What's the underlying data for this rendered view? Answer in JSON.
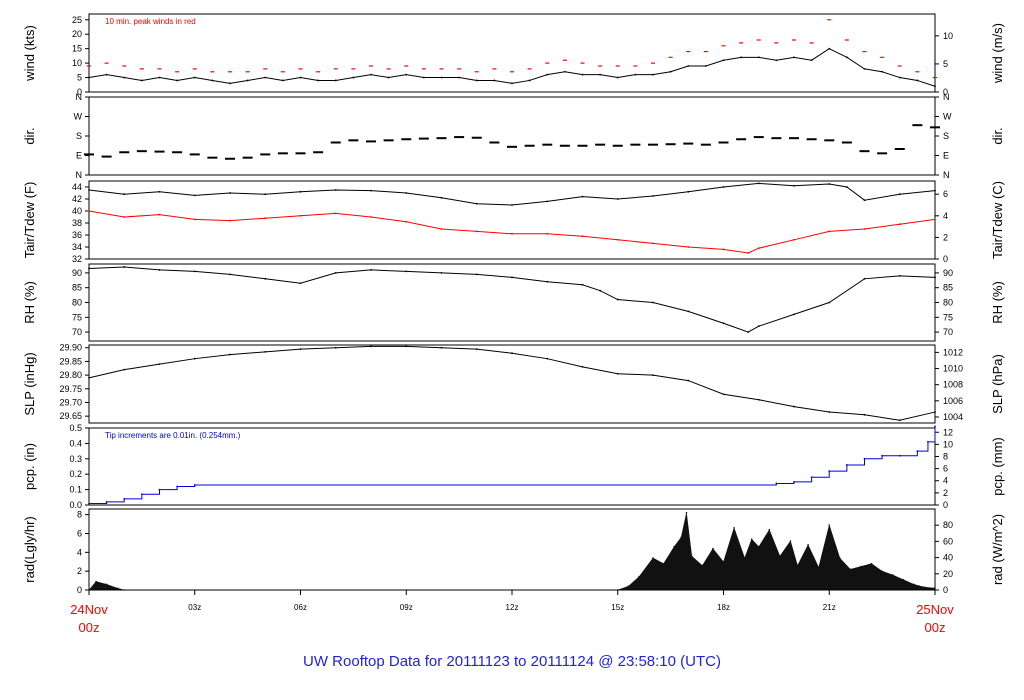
{
  "title": "UW Rooftop Data for 20111123  to  20111124 @ 23:58:10  (UTC)",
  "colors": {
    "black": "#000000",
    "red": "#ff0000",
    "blue": "#0000dd",
    "title": "#2222dd",
    "rad_fill": "#111111"
  },
  "x_axis": {
    "range_hours": [
      0,
      24
    ],
    "ticks": [
      {
        "hour": 0,
        "label": "24Nov",
        "sublabel": "00z",
        "highlight": true
      },
      {
        "hour": 3,
        "label": "03z"
      },
      {
        "hour": 6,
        "label": "06z"
      },
      {
        "hour": 9,
        "label": "09z"
      },
      {
        "hour": 12,
        "label": "12z"
      },
      {
        "hour": 15,
        "label": "15z"
      },
      {
        "hour": 18,
        "label": "18z"
      },
      {
        "hour": 21,
        "label": "21z"
      },
      {
        "hour": 24,
        "label": "25Nov",
        "sublabel": "00z",
        "highlight": true
      }
    ]
  },
  "chart_data": [
    {
      "id": "wind",
      "type": "line",
      "ylabel": "wind (kts)",
      "ylabel_right": "wind (m/s)",
      "ylim": [
        0,
        27
      ],
      "yticks": [
        0,
        5,
        10,
        15,
        20,
        25
      ],
      "yticks_right": [
        {
          "label": "0",
          "value": 0
        },
        {
          "label": "5",
          "value": 9.72
        },
        {
          "label": "10",
          "value": 19.44
        }
      ],
      "annotation": {
        "text": "10 min. peak winds in red",
        "color": "#ff0000"
      },
      "series": [
        {
          "color": "#000000",
          "x": [
            0,
            0.5,
            1,
            1.5,
            2,
            2.5,
            3,
            3.5,
            4,
            4.5,
            5,
            5.5,
            6,
            6.5,
            7,
            7.5,
            8,
            8.5,
            9,
            9.5,
            10,
            10.5,
            11,
            11.5,
            12,
            12.5,
            13,
            13.5,
            14,
            14.5,
            15,
            15.5,
            16,
            16.5,
            17,
            17.5,
            18,
            18.5,
            19,
            19.5,
            20,
            20.5,
            21,
            21.5,
            22,
            22.5,
            23,
            23.5,
            24
          ],
          "values": [
            5,
            6,
            5,
            4,
            5,
            4,
            5,
            4,
            3,
            4,
            5,
            4,
            5,
            4,
            4,
            5,
            6,
            5,
            6,
            5,
            5,
            5,
            4,
            4,
            3,
            4,
            6,
            7,
            6,
            6,
            5,
            6,
            6,
            7,
            9,
            9,
            11,
            12,
            12,
            11,
            12,
            11,
            15,
            12,
            8,
            7,
            5,
            4,
            2
          ]
        },
        {
          "color": "#ff0000",
          "style": "dash-markers",
          "name": "10 min. peak winds in red",
          "x": [
            0,
            0.5,
            1,
            1.5,
            2,
            2.5,
            3,
            3.5,
            4,
            4.5,
            5,
            5.5,
            6,
            6.5,
            7,
            7.5,
            8,
            8.5,
            9,
            9.5,
            10,
            10.5,
            11,
            11.5,
            12,
            12.5,
            13,
            13.5,
            14,
            14.5,
            15,
            15.5,
            16,
            16.5,
            17,
            17.5,
            18,
            18.5,
            19,
            19.5,
            20,
            20.5,
            21,
            21.5,
            22,
            22.5,
            23,
            23.5,
            24
          ],
          "values": [
            9,
            10,
            9,
            8,
            8,
            7,
            8,
            7,
            7,
            7,
            8,
            7,
            8,
            7,
            8,
            8,
            9,
            8,
            9,
            8,
            8,
            8,
            7,
            8,
            7,
            8,
            10,
            11,
            10,
            9,
            9,
            9,
            10,
            12,
            14,
            14,
            16,
            17,
            18,
            17,
            18,
            17,
            25,
            18,
            14,
            12,
            9,
            7,
            5
          ]
        }
      ]
    },
    {
      "id": "dir",
      "type": "scatter",
      "ylabel": "dir.",
      "ylabel_right": "dir.",
      "ylim": [
        0,
        360
      ],
      "yticks": [
        {
          "label": "N",
          "value": 0
        },
        {
          "label": "E",
          "value": 90
        },
        {
          "label": "S",
          "value": 180
        },
        {
          "label": "W",
          "value": 270
        },
        {
          "label": "N",
          "value": 360
        }
      ],
      "series": [
        {
          "color": "#000000",
          "x": [
            0,
            0.5,
            1,
            1.5,
            2,
            2.5,
            3,
            3.5,
            4,
            4.5,
            5,
            5.5,
            6,
            6.5,
            7,
            7.5,
            8,
            8.5,
            9,
            9.5,
            10,
            10.5,
            11,
            11.5,
            12,
            12.5,
            13,
            13.5,
            14,
            14.5,
            15,
            15.5,
            16,
            16.5,
            17,
            17.5,
            18,
            18.5,
            19,
            19.5,
            20,
            20.5,
            21,
            21.5,
            22,
            22.5,
            23,
            23.5,
            24
          ],
          "values": [
            95,
            85,
            105,
            110,
            108,
            105,
            95,
            80,
            75,
            80,
            95,
            100,
            100,
            105,
            150,
            160,
            155,
            160,
            165,
            168,
            170,
            175,
            172,
            150,
            130,
            135,
            140,
            135,
            135,
            140,
            135,
            140,
            140,
            142,
            145,
            140,
            150,
            165,
            175,
            170,
            170,
            165,
            160,
            150,
            110,
            100,
            120,
            230,
            220
          ]
        }
      ]
    },
    {
      "id": "temp",
      "type": "line",
      "ylabel": "Tair/Tdew (F)",
      "ylabel_right": "Tair/Tdew (C)",
      "ylim": [
        32,
        45
      ],
      "yticks": [
        32,
        34,
        36,
        38,
        40,
        42,
        44
      ],
      "yticks_right": [
        {
          "label": "0",
          "value": 32
        },
        {
          "label": "2",
          "value": 35.6
        },
        {
          "label": "4",
          "value": 39.2
        },
        {
          "label": "6",
          "value": 42.8
        }
      ],
      "series": [
        {
          "color": "#000000",
          "x": [
            0,
            1,
            2,
            3,
            4,
            5,
            6,
            7,
            8,
            9,
            10,
            11,
            12,
            13,
            14,
            15,
            16,
            17,
            18,
            19,
            20,
            21,
            21.5,
            22,
            23,
            24
          ],
          "values": [
            43.5,
            42.8,
            43.2,
            42.6,
            43.0,
            42.8,
            43.2,
            43.5,
            43.4,
            43.0,
            42.2,
            41.2,
            41.0,
            41.6,
            42.4,
            42.0,
            42.5,
            43.2,
            44.0,
            44.6,
            44.2,
            44.5,
            44.0,
            41.8,
            42.8,
            43.4
          ]
        },
        {
          "color": "#ff0000",
          "x": [
            0,
            1,
            2,
            3,
            4,
            5,
            6,
            7,
            8,
            9,
            10,
            11,
            12,
            13,
            14,
            15,
            16,
            17,
            18,
            18.7,
            19,
            20,
            21,
            22,
            23,
            24
          ],
          "values": [
            40.0,
            39.0,
            39.4,
            38.6,
            38.4,
            38.8,
            39.2,
            39.6,
            39.0,
            38.2,
            37.0,
            36.6,
            36.2,
            36.2,
            35.8,
            35.2,
            34.6,
            34.0,
            33.6,
            33.0,
            33.8,
            35.2,
            36.6,
            37.0,
            37.8,
            38.6
          ]
        }
      ]
    },
    {
      "id": "rh",
      "type": "line",
      "ylabel": "RH (%)",
      "ylabel_right": "RH (%)",
      "ylim": [
        67,
        93
      ],
      "yticks": [
        70,
        75,
        80,
        85,
        90
      ],
      "series": [
        {
          "color": "#000000",
          "x": [
            0,
            1,
            2,
            3,
            4,
            5,
            6,
            7,
            8,
            9,
            10,
            11,
            12,
            13,
            14,
            14.5,
            15,
            16,
            17,
            18,
            18.7,
            19,
            20,
            21,
            22,
            23,
            24
          ],
          "values": [
            91.5,
            92.0,
            91.0,
            90.5,
            89.5,
            88.0,
            86.5,
            90.0,
            91.0,
            90.5,
            90.0,
            89.5,
            88.5,
            87.0,
            86.0,
            84.0,
            81.0,
            80.0,
            77.0,
            73.0,
            70.0,
            72.0,
            76.0,
            80.0,
            88.0,
            89.0,
            88.5
          ]
        }
      ]
    },
    {
      "id": "slp",
      "type": "line",
      "ylabel": "SLP (inHg)",
      "ylabel_right": "SLP (hPa)",
      "ylim": [
        29.625,
        29.91
      ],
      "yticks": [
        29.65,
        29.7,
        29.75,
        29.8,
        29.85,
        29.9
      ],
      "yticks_right": [
        {
          "label": "1004",
          "value": 29.647
        },
        {
          "label": "1006",
          "value": 29.706
        },
        {
          "label": "1008",
          "value": 29.765
        },
        {
          "label": "1010",
          "value": 29.824
        },
        {
          "label": "1012",
          "value": 29.883
        }
      ],
      "series": [
        {
          "color": "#000000",
          "x": [
            0,
            1,
            2,
            3,
            4,
            5,
            6,
            7,
            8,
            9,
            10,
            11,
            12,
            13,
            14,
            15,
            16,
            17,
            18,
            19,
            20,
            21,
            22,
            23,
            24
          ],
          "values": [
            29.79,
            29.82,
            29.84,
            29.86,
            29.875,
            29.885,
            29.895,
            29.9,
            29.905,
            29.905,
            29.9,
            29.895,
            29.88,
            29.86,
            29.83,
            29.805,
            29.8,
            29.78,
            29.73,
            29.71,
            29.685,
            29.665,
            29.655,
            29.635,
            29.665
          ]
        }
      ]
    },
    {
      "id": "pcp",
      "type": "line",
      "ylabel": "pcp. (in)",
      "ylabel_right": "pcp. (mm)",
      "ylim": [
        0,
        0.5
      ],
      "yticks": [
        0.0,
        0.1,
        0.2,
        0.3,
        0.4,
        0.5
      ],
      "yticks_right": [
        {
          "label": "0",
          "value": 0
        },
        {
          "label": "2",
          "value": 0.0787
        },
        {
          "label": "4",
          "value": 0.1575
        },
        {
          "label": "6",
          "value": 0.2362
        },
        {
          "label": "8",
          "value": 0.315
        },
        {
          "label": "10",
          "value": 0.3937
        },
        {
          "label": "12",
          "value": 0.4724
        }
      ],
      "annotation": {
        "text": "Tip increments are 0.01in. (0.254mm.)",
        "color": "#0000dd"
      },
      "series": [
        {
          "color": "#0000dd",
          "step": true,
          "x": [
            0,
            0.5,
            1,
            1.5,
            2,
            2.5,
            3,
            19.5,
            20,
            20.5,
            21,
            21.5,
            22,
            22.5,
            23,
            23.5,
            23.8,
            24
          ],
          "values": [
            0.01,
            0.02,
            0.04,
            0.07,
            0.1,
            0.12,
            0.13,
            0.14,
            0.15,
            0.18,
            0.22,
            0.26,
            0.3,
            0.32,
            0.32,
            0.35,
            0.41,
            0.51
          ]
        }
      ]
    },
    {
      "id": "rad",
      "type": "area",
      "ylabel": "rad(Lgly/hr)",
      "ylabel_right": "rad (W/m^2)",
      "ylim": [
        0,
        8.6
      ],
      "yticks": [
        0,
        2,
        4,
        6,
        8
      ],
      "yticks_right": [
        {
          "label": "0",
          "value": 0
        },
        {
          "label": "20",
          "value": 1.72
        },
        {
          "label": "40",
          "value": 3.44
        },
        {
          "label": "60",
          "value": 5.16
        },
        {
          "label": "80",
          "value": 6.88
        }
      ],
      "series": [
        {
          "color": "#111111",
          "x": [
            0,
            0.2,
            0.5,
            0.8,
            1.0,
            15.0,
            15.3,
            15.6,
            16.0,
            16.3,
            16.6,
            16.8,
            16.95,
            17.1,
            17.4,
            17.7,
            18.0,
            18.3,
            18.6,
            18.8,
            19.0,
            19.3,
            19.6,
            19.9,
            20.1,
            20.4,
            20.7,
            21.0,
            21.3,
            21.6,
            21.9,
            22.2,
            22.5,
            22.8,
            23.1,
            23.4,
            23.7,
            24.0
          ],
          "values": [
            0,
            0.9,
            0.6,
            0.2,
            0,
            0,
            0.4,
            1.4,
            3.4,
            2.8,
            4.6,
            5.6,
            8.2,
            3.6,
            2.6,
            4.4,
            3.0,
            6.6,
            3.4,
            5.4,
            4.6,
            6.4,
            3.6,
            5.2,
            2.6,
            4.8,
            2.4,
            6.9,
            3.4,
            2.2,
            2.5,
            2.8,
            2.0,
            1.6,
            1.1,
            0.6,
            0.3,
            0.2
          ]
        }
      ]
    }
  ]
}
